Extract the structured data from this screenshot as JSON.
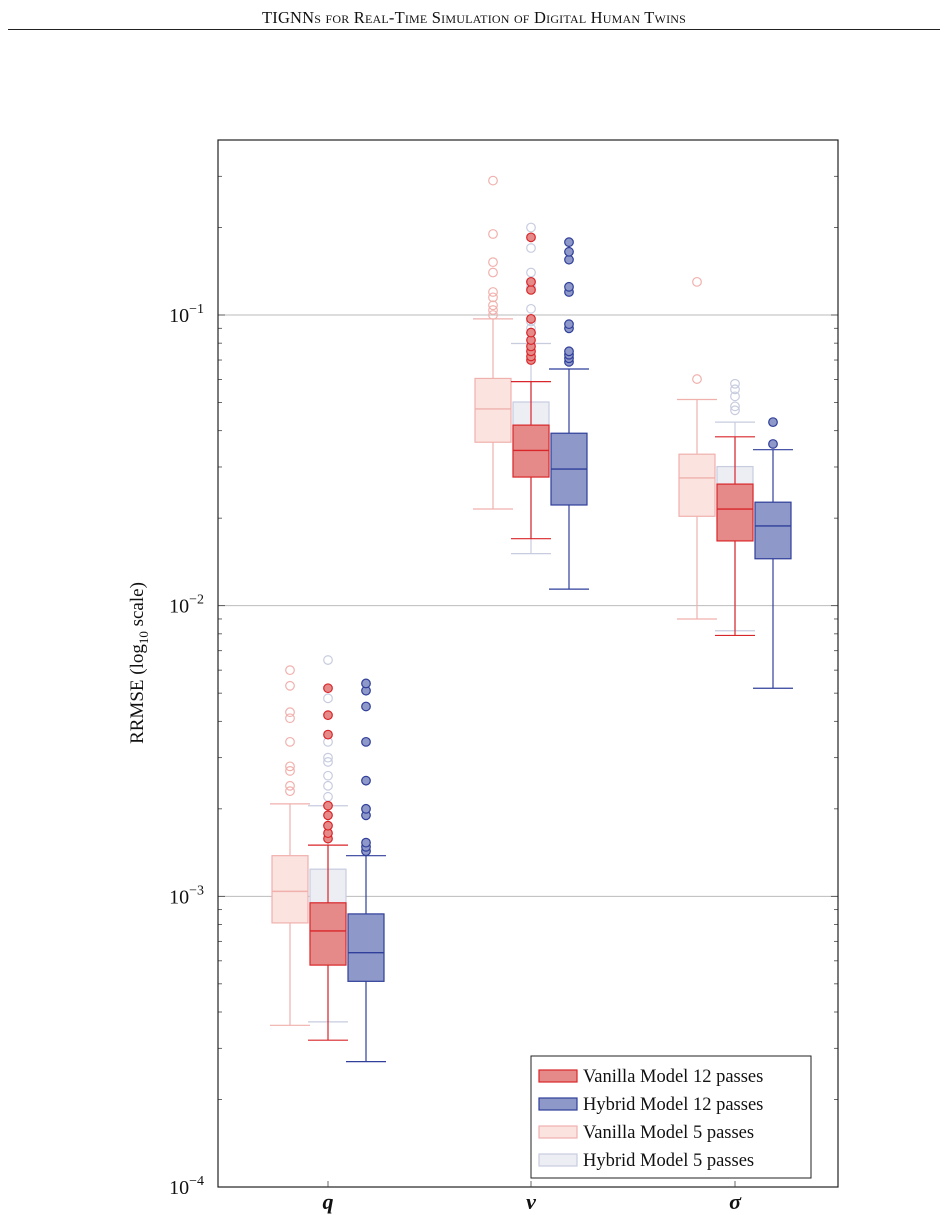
{
  "header": {
    "running_title": "TIGNNs for Real-Time Simulation of Digital Human Twins"
  },
  "colors": {
    "vanilla_12_fill": "#e58a88",
    "vanilla_12_stroke": "#d9262a",
    "hybrid_12_fill": "#8e98c9",
    "hybrid_12_stroke": "#2f3f9a",
    "vanilla_5_fill": "#fbe3e0",
    "vanilla_5_stroke": "#f0b1ad",
    "hybrid_5_fill": "#eceef4",
    "hybrid_5_stroke": "#c7ccdf",
    "grid": "#bbbbbb"
  },
  "chart_data": {
    "type": "box",
    "ylabel_main": "RRMSE (log",
    "ylabel_sub": "10",
    "ylabel_tail": " scale)",
    "yscale": "log",
    "ylim": [
      0.0001,
      0.4
    ],
    "yticks": [
      {
        "value": 0.1,
        "base": "10",
        "exp": "−1"
      },
      {
        "value": 0.01,
        "base": "10",
        "exp": "−2"
      },
      {
        "value": 0.001,
        "base": "10",
        "exp": "−3"
      },
      {
        "value": 0.0001,
        "base": "10",
        "exp": "−4"
      }
    ],
    "grid": "major-y",
    "categories": [
      "q",
      "v",
      "σ"
    ],
    "legend_position": "bottom-right",
    "series": [
      {
        "name": "Vanilla Model 12 passes",
        "style": "vanilla_12",
        "offset": 0,
        "boxes": [
          {
            "min": 0.00032,
            "q1": 0.00058,
            "median": 0.00076,
            "q3": 0.00095,
            "max": 0.0015,
            "outliers": [
              0.00158,
              0.00165,
              0.00175,
              0.0019,
              0.00205,
              0.0036,
              0.0042,
              0.0052
            ]
          },
          {
            "min": 0.017,
            "q1": 0.0277,
            "median": 0.0342,
            "q3": 0.0418,
            "max": 0.059,
            "outliers": [
              0.07,
              0.072,
              0.075,
              0.078,
              0.082,
              0.087,
              0.097,
              0.122,
              0.13,
              0.185
            ]
          },
          {
            "min": 0.0079,
            "q1": 0.0167,
            "median": 0.0215,
            "q3": 0.0262,
            "max": 0.0381,
            "outliers": []
          }
        ]
      },
      {
        "name": "Hybrid Model 12 passes",
        "style": "hybrid_12",
        "offset": 1,
        "boxes": [
          {
            "min": 0.00027,
            "q1": 0.00051,
            "median": 0.00064,
            "q3": 0.00087,
            "max": 0.00138,
            "outliers": [
              0.00143,
              0.00148,
              0.00153,
              0.0019,
              0.002,
              0.0025,
              0.0034,
              0.0045,
              0.0051,
              0.0054
            ]
          },
          {
            "min": 0.0114,
            "q1": 0.0222,
            "median": 0.0295,
            "q3": 0.0392,
            "max": 0.0652,
            "outliers": [
              0.069,
              0.071,
              0.073,
              0.075,
              0.09,
              0.093,
              0.12,
              0.125,
              0.155,
              0.165,
              0.178
            ]
          },
          {
            "min": 0.0052,
            "q1": 0.0145,
            "median": 0.0188,
            "q3": 0.0227,
            "max": 0.0344,
            "outliers": [
              0.036,
              0.0428
            ]
          }
        ]
      },
      {
        "name": "Vanilla Model 5 passes",
        "style": "vanilla_5",
        "offset": -1,
        "boxes": [
          {
            "min": 0.00036,
            "q1": 0.00081,
            "median": 0.00104,
            "q3": 0.00138,
            "max": 0.00208,
            "outliers": [
              0.0023,
              0.0024,
              0.0027,
              0.0028,
              0.0034,
              0.0041,
              0.0043,
              0.0053,
              0.006
            ]
          },
          {
            "min": 0.0215,
            "q1": 0.0365,
            "median": 0.0475,
            "q3": 0.0605,
            "max": 0.097,
            "outliers": [
              0.1,
              0.104,
              0.108,
              0.115,
              0.12,
              0.14,
              0.152,
              0.19,
              0.29
            ]
          },
          {
            "min": 0.009,
            "q1": 0.0203,
            "median": 0.0275,
            "q3": 0.0332,
            "max": 0.0512,
            "outliers": [
              0.0602,
              0.13
            ]
          }
        ]
      },
      {
        "name": "Hybrid Model 5 passes",
        "style": "hybrid_5",
        "offset": 0,
        "boxes": [
          {
            "min": 0.00037,
            "q1": 0.00068,
            "median": 0.00094,
            "q3": 0.00124,
            "max": 0.00205,
            "outliers": [
              0.0022,
              0.0024,
              0.0026,
              0.0029,
              0.003,
              0.0034,
              0.0048,
              0.0065
            ]
          },
          {
            "min": 0.0151,
            "q1": 0.0285,
            "median": 0.0365,
            "q3": 0.0502,
            "max": 0.0798,
            "outliers": [
              0.087,
              0.09,
              0.095,
              0.105,
              0.125,
              0.13,
              0.14,
              0.17,
              0.2
            ]
          },
          {
            "min": 0.0082,
            "q1": 0.0195,
            "median": 0.0252,
            "q3": 0.0301,
            "max": 0.0428,
            "outliers": [
              0.047,
              0.0485,
              0.0525,
              0.0555,
              0.058
            ]
          }
        ]
      }
    ],
    "legend": [
      {
        "label": "Vanilla Model 12 passes",
        "style": "vanilla_12"
      },
      {
        "label": "Hybrid Model 12 passes",
        "style": "hybrid_12"
      },
      {
        "label": "Vanilla Model 5 passes",
        "style": "vanilla_5"
      },
      {
        "label": "Hybrid Model 5 passes",
        "style": "hybrid_5"
      }
    ]
  }
}
